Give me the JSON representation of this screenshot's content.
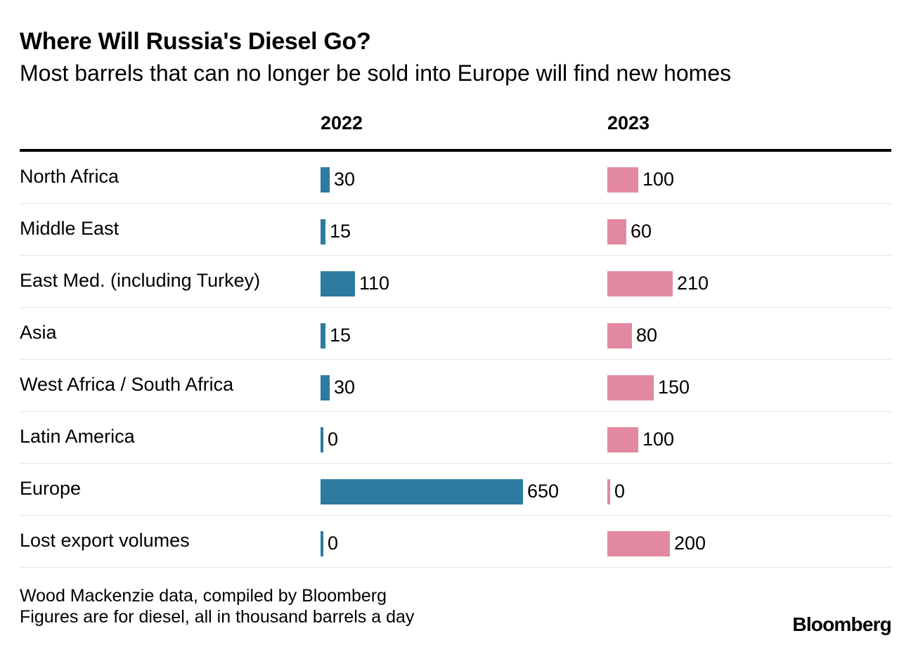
{
  "title": "Where Will Russia's Diesel Go?",
  "subtitle": "Most barrels that can no longer be sold into Europe will find new homes",
  "chart_data": {
    "type": "bar",
    "orientation": "horizontal",
    "title": "Where Will Russia's Diesel Go?",
    "subtitle": "Most barrels that can no longer be sold into Europe will find new homes",
    "categories": [
      "North Africa",
      "Middle East",
      "East Med. (including Turkey)",
      "Asia",
      "West Africa / South Africa",
      "Latin America",
      "Europe",
      "Lost export volumes"
    ],
    "series": [
      {
        "name": "2022",
        "color": "#2e7ba0",
        "values": [
          30,
          15,
          110,
          15,
          30,
          0,
          650,
          0
        ]
      },
      {
        "name": "2023",
        "color": "#e289a1",
        "values": [
          100,
          60,
          210,
          80,
          150,
          100,
          0,
          200
        ]
      }
    ],
    "unit": "thousand barrels a day",
    "xlim": [
      0,
      650
    ]
  },
  "source_line1": "Wood Mackenzie data, compiled by Bloomberg",
  "source_line2": "Figures are for diesel, all in thousand barrels a day",
  "brand": "Bloomberg"
}
